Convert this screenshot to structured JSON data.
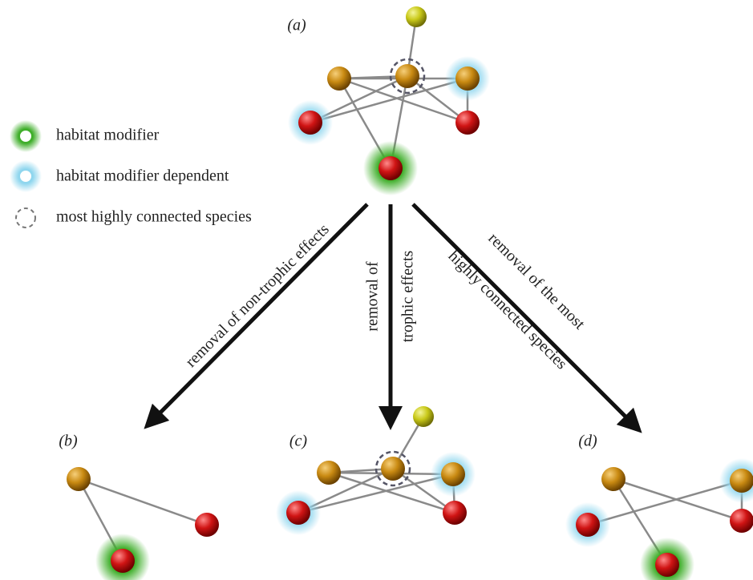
{
  "panels": [
    "(a)",
    "(b)",
    "(c)",
    "(d)"
  ],
  "legend": [
    "habitat modifier",
    "habitat modifier dependent",
    "most highly connected species"
  ],
  "arrows": {
    "left": [
      "removal of non-trophic effects"
    ],
    "middle": [
      "removal of",
      "trophic effects"
    ],
    "right": [
      "removal of the most",
      "highly connected species"
    ]
  }
}
